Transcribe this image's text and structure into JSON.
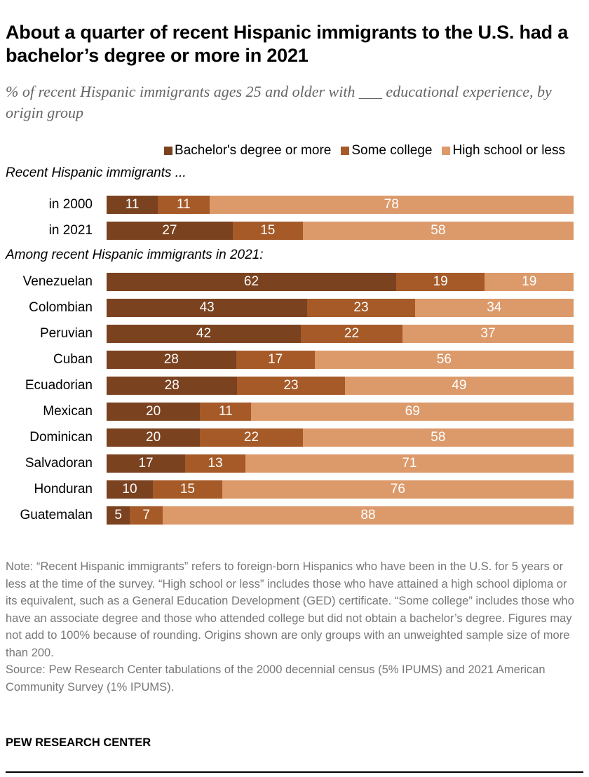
{
  "title": "About a quarter of recent Hispanic immigrants to the U.S. had a bachelor’s degree or more in 2021",
  "subtitle": "% of recent Hispanic immigrants ages 25 and older with ___ educational experience, by origin group",
  "chart_data": {
    "type": "bar",
    "orientation": "horizontal",
    "stacked": true,
    "legend_placement": "top-right",
    "series": [
      {
        "name": "Bachelor's degree or more",
        "color": "#7b4220"
      },
      {
        "name": "Some college",
        "color": "#a65a28"
      },
      {
        "name": "High school or less",
        "color": "#dc9a6b"
      }
    ],
    "groups": [
      {
        "label": "Recent Hispanic immigrants ...",
        "rows": [
          {
            "category": "in 2000",
            "values": [
              11,
              11,
              78
            ]
          },
          {
            "category": "in 2021",
            "values": [
              27,
              15,
              58
            ]
          }
        ]
      },
      {
        "label": "Among recent Hispanic immigrants in 2021:",
        "rows": [
          {
            "category": "Venezuelan",
            "values": [
              62,
              19,
              19
            ]
          },
          {
            "category": "Colombian",
            "values": [
              43,
              23,
              34
            ]
          },
          {
            "category": "Peruvian",
            "values": [
              42,
              22,
              37
            ]
          },
          {
            "category": "Cuban",
            "values": [
              28,
              17,
              56
            ]
          },
          {
            "category": "Ecuadorian",
            "values": [
              28,
              23,
              49
            ]
          },
          {
            "category": "Mexican",
            "values": [
              20,
              11,
              69
            ]
          },
          {
            "category": "Dominican",
            "values": [
              20,
              22,
              58
            ]
          },
          {
            "category": "Salvadoran",
            "values": [
              17,
              13,
              71
            ]
          },
          {
            "category": "Honduran",
            "values": [
              10,
              15,
              76
            ]
          },
          {
            "category": "Guatemalan",
            "values": [
              5,
              7,
              88
            ]
          }
        ]
      }
    ]
  },
  "note": "Note: “Recent Hispanic immigrants” refers to foreign-born Hispanics who have been in the U.S. for 5 years or less at the time of the survey. “High school or less” includes those who have attained a high school diploma or its equivalent, such as a General Education Development (GED) certificate. “Some college” includes those who have an associate degree and those who attended college but did not obtain a bachelor’s degree. Figures may not add to 100% because of rounding. Origins shown are only groups with an unweighted sample size of more than 200.",
  "source": "Source: Pew Research Center tabulations of the 2000 decennial census (5% IPUMS) and 2021 American Community Survey (1% IPUMS).",
  "brand": "PEW RESEARCH CENTER"
}
